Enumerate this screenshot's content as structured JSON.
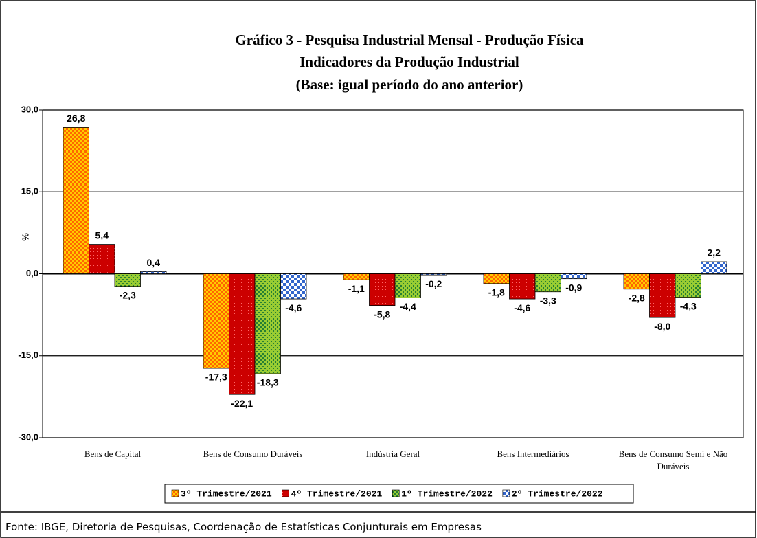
{
  "chart_data": {
    "type": "bar",
    "title": [
      "Gráfico 3 - Pesquisa Industrial Mensal - Produção Física",
      "Indicadores da Produção Industrial",
      "(Base: igual período do ano anterior)"
    ],
    "y_label": "%",
    "categories": [
      "Bens de Capital",
      "Bens de Consumo Duráveis",
      "Indústria Geral",
      "Bens Intermediários",
      "Bens de Consumo Semi e Não Duráveis"
    ],
    "series": [
      {
        "name": "3º Trimestre/2021",
        "color": "#ff9900",
        "values": [
          26.8,
          -17.3,
          -1.1,
          -1.8,
          -2.8
        ],
        "value_labels": [
          "26,8",
          "-17,3",
          "-1,1",
          "-1,8",
          "-2,8"
        ]
      },
      {
        "name": "4º Trimestre/2021",
        "color": "#cc0000",
        "values": [
          5.4,
          -22.1,
          -5.8,
          -4.6,
          -8.0
        ],
        "value_labels": [
          "5,4",
          "-22,1",
          "-5,8",
          "-4,6",
          "-8,0"
        ]
      },
      {
        "name": "1º Trimestre/2022",
        "color": "#99cc33",
        "values": [
          -2.3,
          -18.3,
          -4.4,
          -3.3,
          -4.3
        ],
        "value_labels": [
          "-2,3",
          "-18,3",
          "-4,4",
          "-3,3",
          "-4,3"
        ]
      },
      {
        "name": "2º Trimestre/2022",
        "color": "#3366cc",
        "values": [
          0.4,
          -4.6,
          -0.2,
          -0.9,
          2.2
        ],
        "value_labels": [
          "0,4",
          "-4,6",
          "-0,2",
          "-0,9",
          "2,2"
        ]
      }
    ],
    "ylim": [
      -30,
      30
    ],
    "yticks": [
      {
        "value": -30,
        "label": "-30,0"
      },
      {
        "value": -15,
        "label": "-15,0"
      },
      {
        "value": 0,
        "label": "0,0"
      },
      {
        "value": 15,
        "label": "15,0"
      },
      {
        "value": 30,
        "label": "30,0"
      }
    ],
    "grid": true,
    "legend": "bottom",
    "source": "Fonte: IBGE, Diretoria de Pesquisas, Coordenação de Estatísticas Conjunturais em Empresas"
  }
}
